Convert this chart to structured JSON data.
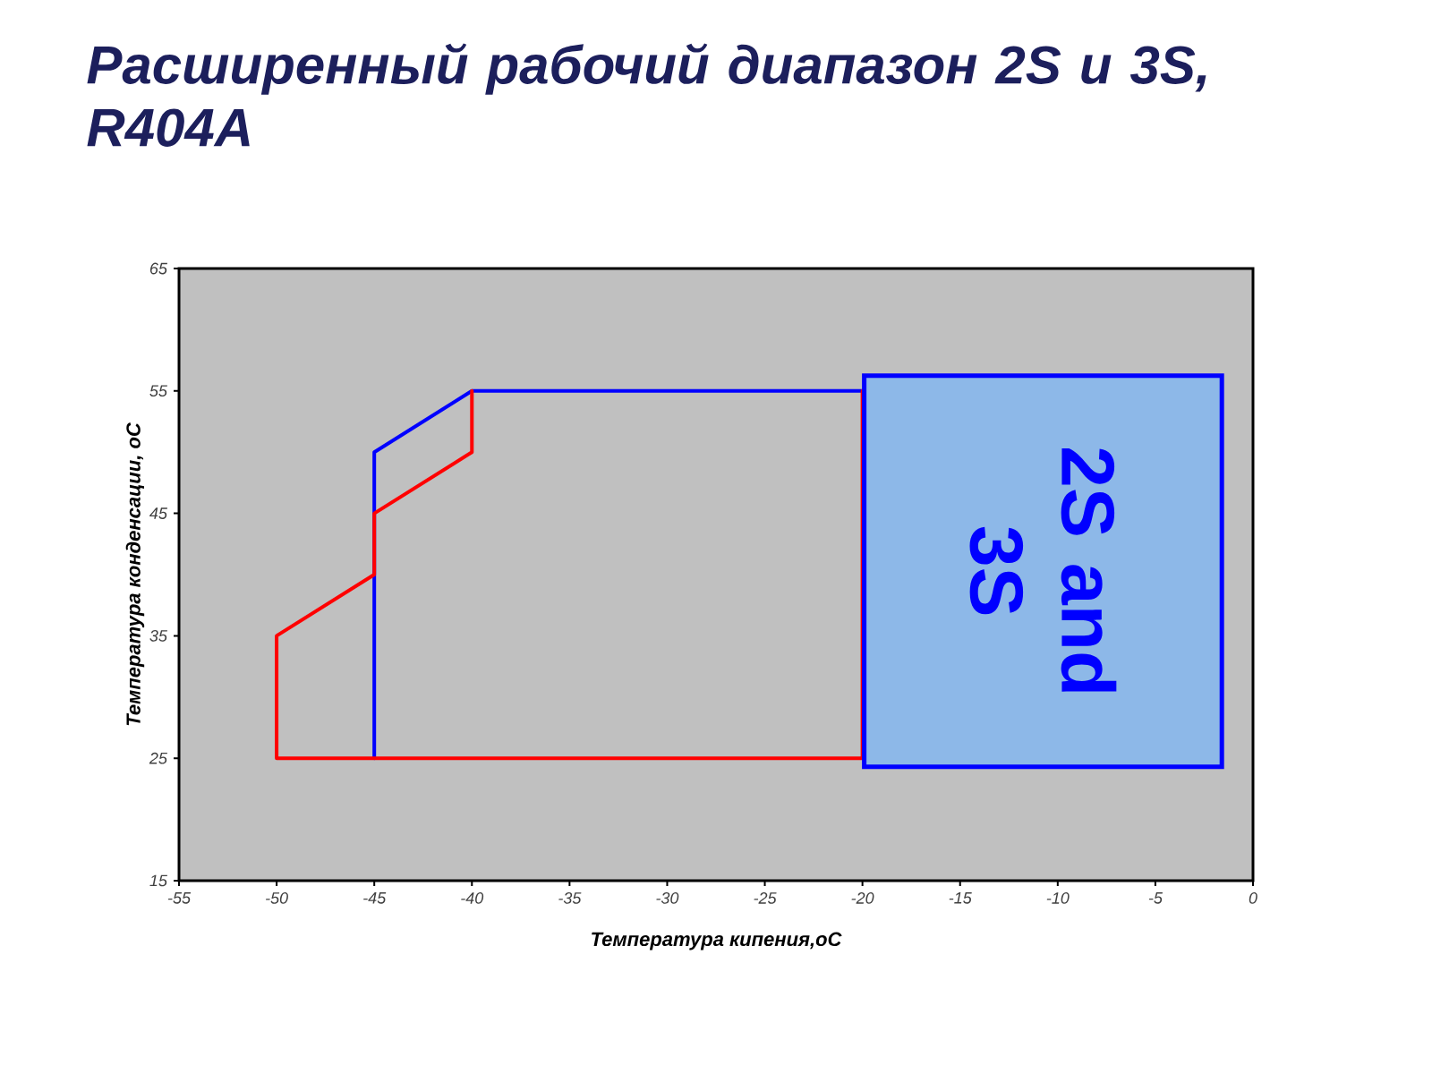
{
  "chart_data": {
    "type": "line",
    "title": "Расширенный рабочий диапазон 2S и 3S, R404A",
    "xlabel": "Температура кипения,оС",
    "ylabel": "Температура конденсации, оС",
    "annotations": [
      "2S and 3S"
    ],
    "xlim": [
      -55,
      0
    ],
    "ylim": [
      15,
      65
    ],
    "xticks": [
      -55,
      -50,
      -45,
      -40,
      -35,
      -30,
      -25,
      -20,
      -15,
      -10,
      -5,
      0
    ],
    "yticks": [
      15,
      25,
      35,
      45,
      55,
      65
    ],
    "marker": "none",
    "line_style": "solid",
    "series": [
      {
        "color": "#0000ff",
        "x": [
          -45,
          -45,
          -40,
          -20
        ],
        "values": [
          25,
          50,
          55,
          55
        ]
      },
      {
        "color": "#ff0000",
        "x": [
          -20,
          -20,
          -50,
          -50,
          -45,
          -45,
          -40,
          -40
        ],
        "values": [
          55,
          25,
          25,
          35,
          40,
          45,
          50,
          55
        ]
      }
    ]
  }
}
